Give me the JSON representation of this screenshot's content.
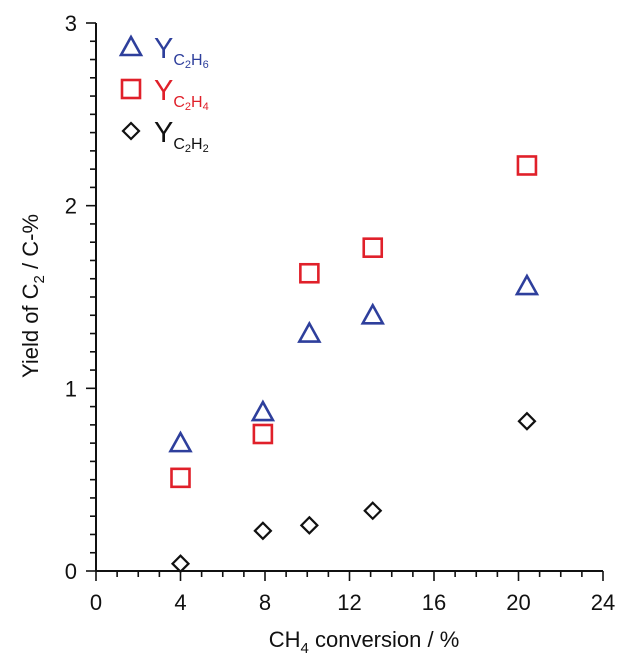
{
  "chart_data": {
    "type": "scatter",
    "xlabel": "CH",
    "xlabel_sub": "4",
    "xlabel_tail": " conversion / %",
    "ylabel": "Yield of C",
    "ylabel_sub": "2",
    "ylabel_tail": " / C-%",
    "xlim": [
      0,
      24
    ],
    "ylim": [
      0,
      3
    ],
    "xticks": [
      0,
      4,
      8,
      12,
      16,
      20,
      24
    ],
    "yticks": [
      0,
      1,
      2,
      3
    ],
    "grid": false,
    "legend_position": "top-left",
    "series": [
      {
        "name": "Y",
        "subscript": "C2H6",
        "marker": "triangle",
        "color": "#2e3f9c",
        "x": [
          4.0,
          7.9,
          10.1,
          13.1,
          20.4
        ],
        "y": [
          0.7,
          0.87,
          1.3,
          1.4,
          1.56
        ]
      },
      {
        "name": "Y",
        "subscript": "C2H4",
        "marker": "square",
        "color": "#e0202a",
        "x": [
          4.0,
          7.9,
          10.1,
          13.1,
          20.4
        ],
        "y": [
          0.51,
          0.75,
          1.63,
          1.77,
          2.22
        ]
      },
      {
        "name": "Y",
        "subscript": "C2H2",
        "marker": "diamond",
        "color": "#111111",
        "x": [
          4.0,
          7.9,
          10.1,
          13.1,
          20.4
        ],
        "y": [
          0.04,
          0.22,
          0.25,
          0.33,
          0.82
        ]
      }
    ]
  }
}
